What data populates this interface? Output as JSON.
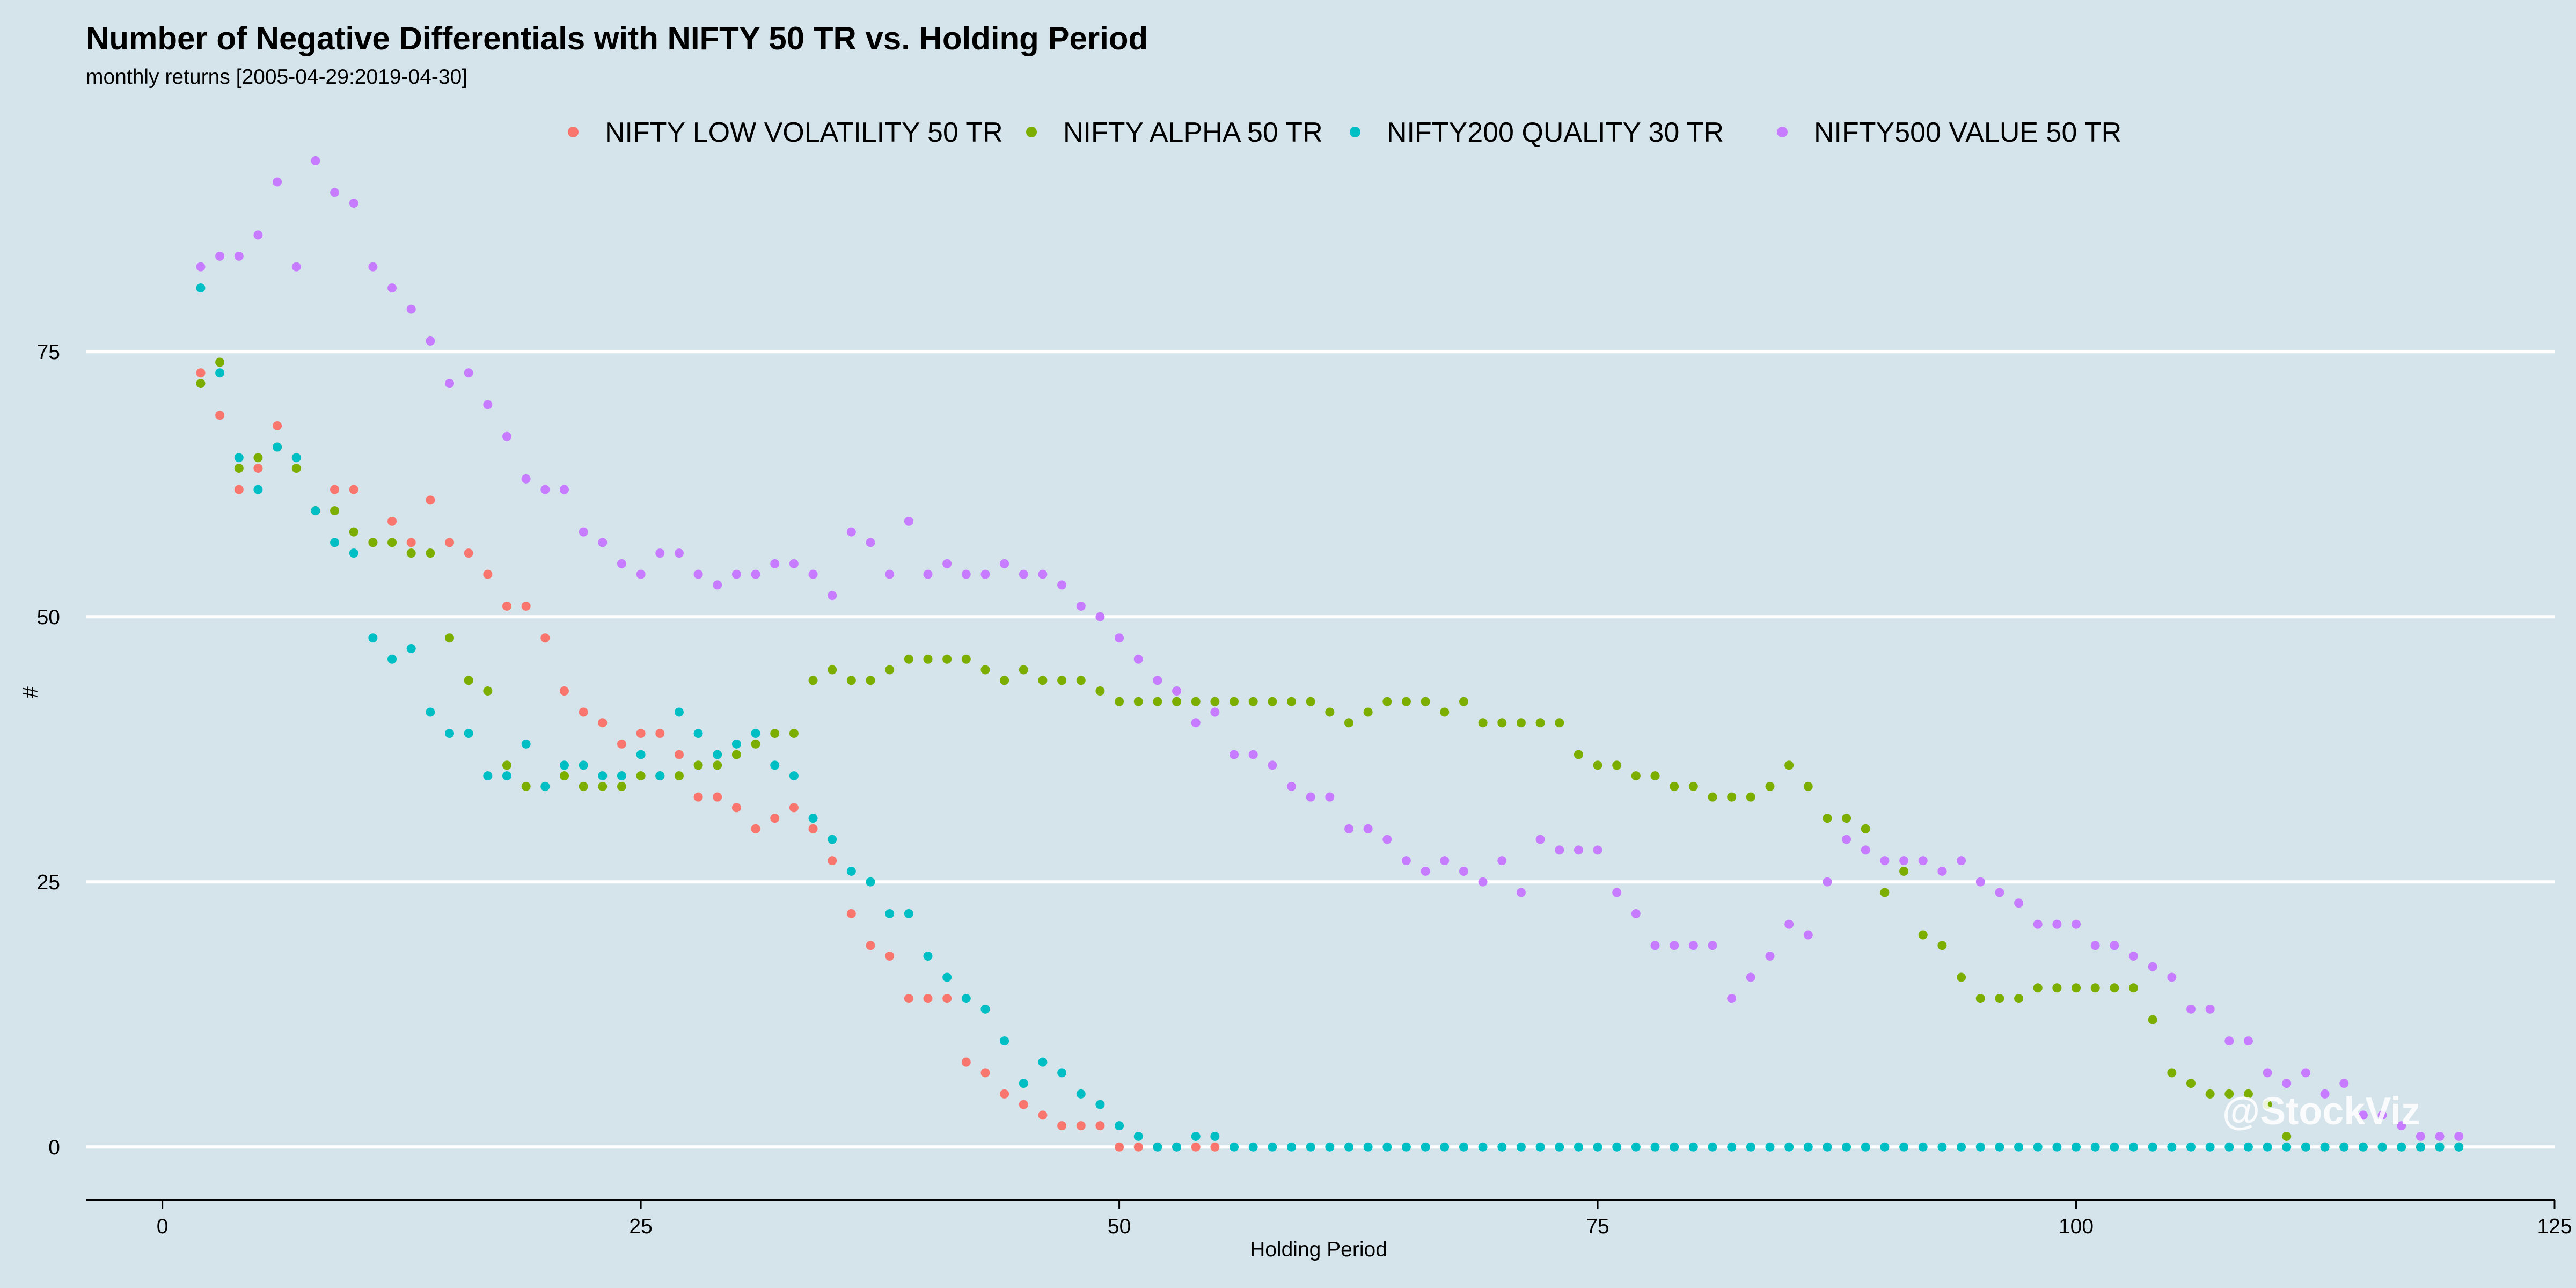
{
  "chart_data": {
    "type": "scatter",
    "title": "Number of Negative Differentials with NIFTY 50 TR vs. Holding Period",
    "subtitle": "monthly returns [2005-04-29:2019-04-30]",
    "xlabel": "Holding Period",
    "ylabel": "#",
    "xlim": [
      -4,
      125
    ],
    "ylim": [
      -5,
      95
    ],
    "x_ticks": [
      0,
      25,
      50,
      75,
      100,
      125
    ],
    "y_ticks": [
      0,
      25,
      50,
      75
    ],
    "grid": true,
    "legend_position": "top",
    "watermark": "@StockViz",
    "series": [
      {
        "name": "NIFTY LOW VOLATILITY 50 TR",
        "color": "#F8766D",
        "x": [
          2,
          3,
          4,
          5,
          6,
          7,
          8,
          9,
          10,
          11,
          12,
          13,
          14,
          15,
          16,
          17,
          18,
          19,
          20,
          21,
          22,
          23,
          24,
          25,
          26,
          27,
          28,
          29,
          30,
          31,
          32,
          33,
          34,
          35,
          36,
          37,
          38,
          39,
          40,
          41,
          42,
          43,
          44,
          45,
          46,
          47,
          48,
          49,
          50,
          51,
          52,
          53,
          54,
          55
        ],
        "y": [
          73,
          69,
          62,
          64,
          68,
          65,
          60,
          62,
          62,
          57,
          59,
          57,
          61,
          57,
          56,
          54,
          51,
          51,
          48,
          43,
          41,
          40,
          38,
          39,
          39,
          37,
          33,
          33,
          32,
          30,
          31,
          32,
          30,
          27,
          22,
          19,
          18,
          14,
          14,
          14,
          8,
          7,
          5,
          4,
          3,
          2,
          2,
          2,
          0,
          0,
          0,
          0,
          0,
          0
        ]
      },
      {
        "name": "NIFTY ALPHA 50 TR",
        "color": "#7CAE00",
        "x": [
          2,
          3,
          4,
          5,
          6,
          7,
          8,
          9,
          10,
          11,
          12,
          13,
          14,
          15,
          16,
          17,
          18,
          19,
          20,
          21,
          22,
          23,
          24,
          25,
          26,
          27,
          28,
          29,
          30,
          31,
          32,
          33,
          34,
          35,
          36,
          37,
          38,
          39,
          40,
          41,
          42,
          43,
          44,
          45,
          46,
          47,
          48,
          49,
          50,
          51,
          52,
          53,
          54,
          55,
          56,
          57,
          58,
          59,
          60,
          61,
          62,
          63,
          64,
          65,
          66,
          67,
          68,
          69,
          70,
          71,
          72,
          73,
          74,
          75,
          76,
          77,
          78,
          79,
          80,
          81,
          82,
          83,
          84,
          85,
          86,
          87,
          88,
          89,
          90,
          91,
          92,
          93,
          94,
          95,
          96,
          97,
          98,
          99,
          100,
          101,
          102,
          103,
          104,
          105,
          106,
          107,
          108,
          109,
          110,
          111,
          112,
          113,
          114,
          115,
          116,
          117,
          118,
          119,
          120
        ],
        "y": [
          72,
          74,
          64,
          65,
          66,
          64,
          60,
          60,
          58,
          57,
          57,
          56,
          56,
          48,
          44,
          43,
          36,
          34,
          34,
          35,
          34,
          34,
          34,
          35,
          35,
          35,
          36,
          36,
          37,
          38,
          39,
          39,
          44,
          45,
          44,
          44,
          45,
          46,
          46,
          46,
          46,
          45,
          44,
          45,
          44,
          44,
          44,
          43,
          42,
          42,
          42,
          42,
          42,
          42,
          42,
          42,
          42,
          42,
          42,
          41,
          40,
          41,
          42,
          42,
          42,
          41,
          42,
          40,
          40,
          40,
          40,
          40,
          37,
          36,
          36,
          35,
          35,
          34,
          34,
          33,
          33,
          33,
          34,
          36,
          34,
          31,
          31,
          30,
          24,
          26,
          20,
          19,
          16,
          14,
          14,
          14,
          15,
          15,
          15,
          15,
          15,
          15,
          12,
          7,
          6,
          5,
          5,
          5,
          4,
          1,
          0,
          0,
          0,
          0,
          0,
          0,
          0,
          0,
          0
        ]
      },
      {
        "name": "NIFTY200 QUALITY 30 TR",
        "color": "#00BFC4",
        "x": [
          2,
          3,
          4,
          5,
          6,
          7,
          8,
          9,
          10,
          11,
          12,
          13,
          14,
          15,
          16,
          17,
          18,
          19,
          20,
          21,
          22,
          23,
          24,
          25,
          26,
          27,
          28,
          29,
          30,
          31,
          32,
          33,
          34,
          35,
          36,
          37,
          38,
          39,
          40,
          41,
          42,
          43,
          44,
          45,
          46,
          47,
          48,
          49,
          50,
          51,
          52,
          53,
          54,
          55,
          56,
          57,
          58,
          59,
          60,
          61,
          62,
          63,
          64,
          65,
          66,
          67,
          68,
          69,
          70,
          71,
          72,
          73,
          74,
          75,
          76,
          77,
          78,
          79,
          80,
          81,
          82,
          83,
          84,
          85,
          86,
          87,
          88,
          89,
          90,
          91,
          92,
          93,
          94,
          95,
          96,
          97,
          98,
          99,
          100,
          101,
          102,
          103,
          104,
          105,
          106,
          107,
          108,
          109,
          110,
          111,
          112,
          113,
          114,
          115,
          116,
          117,
          118,
          119,
          120
        ],
        "y": [
          81,
          73,
          65,
          62,
          66,
          65,
          60,
          57,
          56,
          48,
          46,
          47,
          41,
          39,
          39,
          35,
          35,
          38,
          34,
          36,
          36,
          35,
          35,
          37,
          35,
          41,
          39,
          37,
          38,
          39,
          36,
          35,
          31,
          29,
          26,
          25,
          22,
          22,
          18,
          16,
          14,
          13,
          10,
          6,
          8,
          7,
          5,
          4,
          2,
          1,
          0,
          0,
          1,
          1,
          0,
          0,
          0,
          0,
          0,
          0,
          0,
          0,
          0,
          0,
          0,
          0,
          0,
          0,
          0,
          0,
          0,
          0,
          0,
          0,
          0,
          0,
          0,
          0,
          0,
          0,
          0,
          0,
          0,
          0,
          0,
          0,
          0,
          0,
          0,
          0,
          0,
          0,
          0,
          0,
          0,
          0,
          0,
          0,
          0,
          0,
          0,
          0,
          0,
          0,
          0,
          0,
          0,
          0,
          0,
          0,
          0,
          0,
          0,
          0,
          0,
          0,
          0,
          0,
          0
        ]
      },
      {
        "name": "NIFTY500 VALUE 50 TR",
        "color": "#C77CFF",
        "x": [
          2,
          3,
          4,
          5,
          6,
          7,
          8,
          9,
          10,
          11,
          12,
          13,
          14,
          15,
          16,
          17,
          18,
          19,
          20,
          21,
          22,
          23,
          24,
          25,
          26,
          27,
          28,
          29,
          30,
          31,
          32,
          33,
          34,
          35,
          36,
          37,
          38,
          39,
          40,
          41,
          42,
          43,
          44,
          45,
          46,
          47,
          48,
          49,
          50,
          51,
          52,
          53,
          54,
          55,
          56,
          57,
          58,
          59,
          60,
          61,
          62,
          63,
          64,
          65,
          66,
          67,
          68,
          69,
          70,
          71,
          72,
          73,
          74,
          75,
          76,
          77,
          78,
          79,
          80,
          81,
          82,
          83,
          84,
          85,
          86,
          87,
          88,
          89,
          90,
          91,
          92,
          93,
          94,
          95,
          96,
          97,
          98,
          99,
          100,
          101,
          102,
          103,
          104,
          105,
          106,
          107,
          108,
          109,
          110,
          111,
          112,
          113,
          114,
          115,
          116,
          117,
          118,
          119,
          120
        ],
        "y": [
          83,
          84,
          84,
          86,
          91,
          83,
          93,
          90,
          89,
          83,
          81,
          79,
          76,
          72,
          73,
          70,
          67,
          63,
          62,
          62,
          58,
          57,
          55,
          54,
          56,
          56,
          54,
          53,
          54,
          54,
          55,
          55,
          54,
          52,
          58,
          57,
          54,
          59,
          54,
          55,
          54,
          54,
          55,
          54,
          54,
          53,
          51,
          50,
          48,
          46,
          44,
          43,
          40,
          41,
          37,
          37,
          36,
          34,
          33,
          33,
          30,
          30,
          29,
          27,
          26,
          27,
          26,
          25,
          27,
          24,
          29,
          28,
          28,
          28,
          24,
          22,
          19,
          19,
          19,
          19,
          14,
          16,
          18,
          21,
          20,
          25,
          29,
          28,
          27,
          27,
          27,
          26,
          27,
          25,
          24,
          23,
          21,
          21,
          21,
          19,
          19,
          18,
          17,
          16,
          13,
          13,
          10,
          10,
          7,
          6,
          7,
          5,
          6,
          3,
          3,
          2,
          1,
          1,
          1
        ]
      }
    ]
  }
}
